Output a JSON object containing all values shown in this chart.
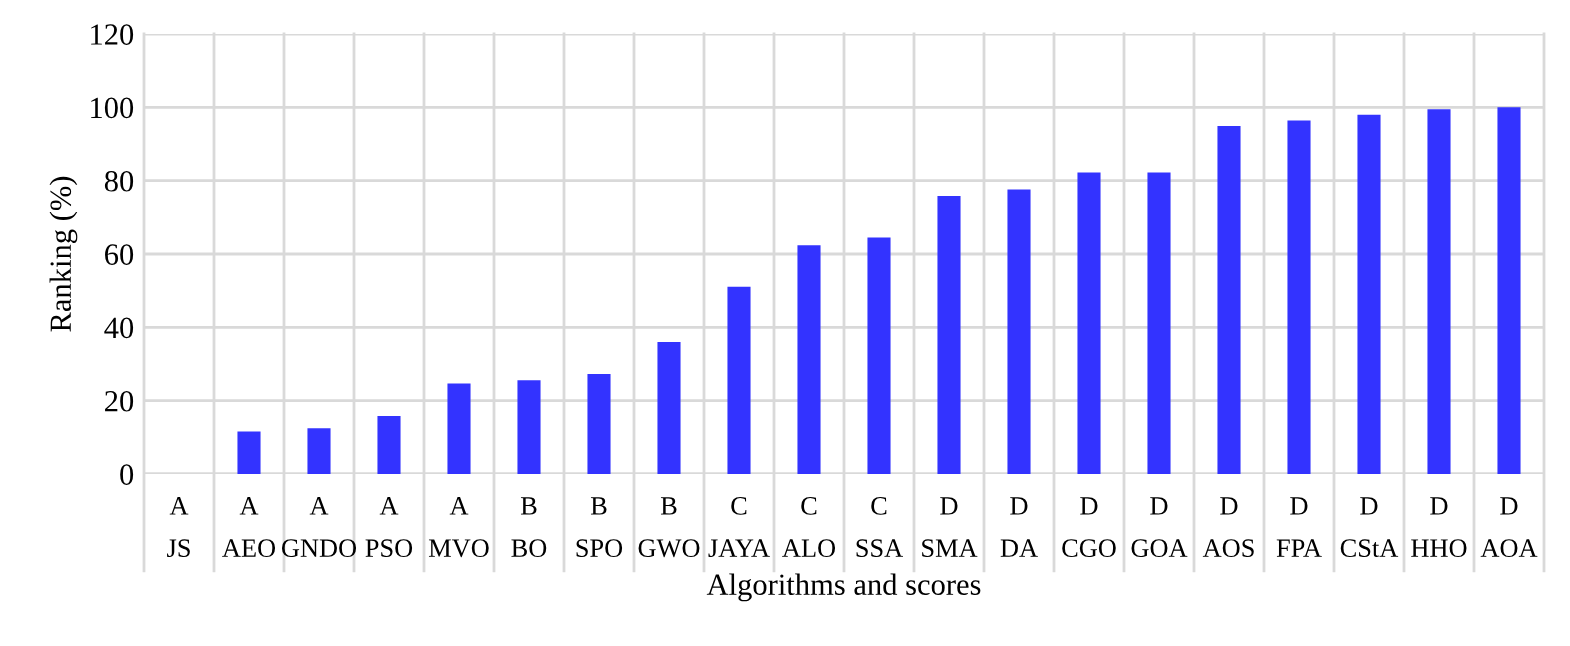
{
  "chart_data": {
    "type": "bar",
    "xlabel": "Algorithms and scores",
    "ylabel": "Ranking (%)",
    "categories": [
      "A\nJS",
      "A\nAEO",
      "A\nGNDO",
      "A\nPSO",
      "A\nMVO",
      "B\nBO",
      "B\nSPO",
      "B\nGWO",
      "C\nJAYA",
      "C\nALO",
      "C\nSSA",
      "D\nSMA",
      "D\nDA",
      "D\nCGO",
      "D\nGOA",
      "D\nAOS",
      "D\nFPA",
      "D\nCStA",
      "D\nHHO",
      "D\nAOA"
    ],
    "values": [
      0,
      11.6,
      12.5,
      15.8,
      24.7,
      25.6,
      27.3,
      36,
      51.1,
      62.4,
      64.5,
      75.8,
      77.6,
      82.2,
      82.2,
      94.9,
      96.4,
      98,
      99.5,
      100
    ],
    "color": "#3333ff",
    "ylim": [
      0,
      120
    ],
    "yticks": [
      0,
      20,
      40,
      60,
      80,
      100,
      120
    ],
    "grid": true,
    "legend": false
  }
}
